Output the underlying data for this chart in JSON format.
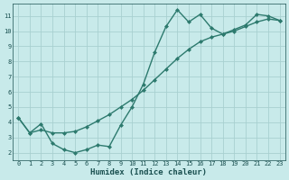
{
  "xlabel": "Humidex (Indice chaleur)",
  "x": [
    0,
    1,
    2,
    3,
    4,
    5,
    6,
    7,
    8,
    9,
    10,
    11,
    12,
    13,
    14,
    15,
    16,
    17,
    18,
    19,
    20,
    21,
    22,
    23
  ],
  "line1_y": [
    4.3,
    3.3,
    3.9,
    2.6,
    2.2,
    2.0,
    2.2,
    2.5,
    2.4,
    3.8,
    5.0,
    6.5,
    8.6,
    10.3,
    11.4,
    10.6,
    11.1,
    10.2,
    9.8,
    10.1,
    10.4,
    11.1,
    11.0,
    10.7
  ],
  "line2_y": [
    4.3,
    3.3,
    3.5,
    3.3,
    3.3,
    3.4,
    3.7,
    4.1,
    4.5,
    5.0,
    5.5,
    6.1,
    6.8,
    7.5,
    8.2,
    8.8,
    9.3,
    9.6,
    9.8,
    10.0,
    10.3,
    10.6,
    10.8,
    10.7
  ],
  "line_color": "#2d7a6e",
  "bg_color": "#c8eaea",
  "grid_color": "#a8d0d0",
  "ylim": [
    1.5,
    11.8
  ],
  "xlim": [
    -0.5,
    23.5
  ],
  "yticks": [
    2,
    3,
    4,
    5,
    6,
    7,
    8,
    9,
    10,
    11
  ],
  "xticks": [
    0,
    1,
    2,
    3,
    4,
    5,
    6,
    7,
    8,
    9,
    10,
    11,
    12,
    13,
    14,
    15,
    16,
    17,
    18,
    19,
    20,
    21,
    22,
    23
  ],
  "markersize": 2.0,
  "linewidth": 1.0,
  "tick_fontsize": 5.0,
  "xlabel_fontsize": 6.5,
  "font_color": "#1a5050"
}
